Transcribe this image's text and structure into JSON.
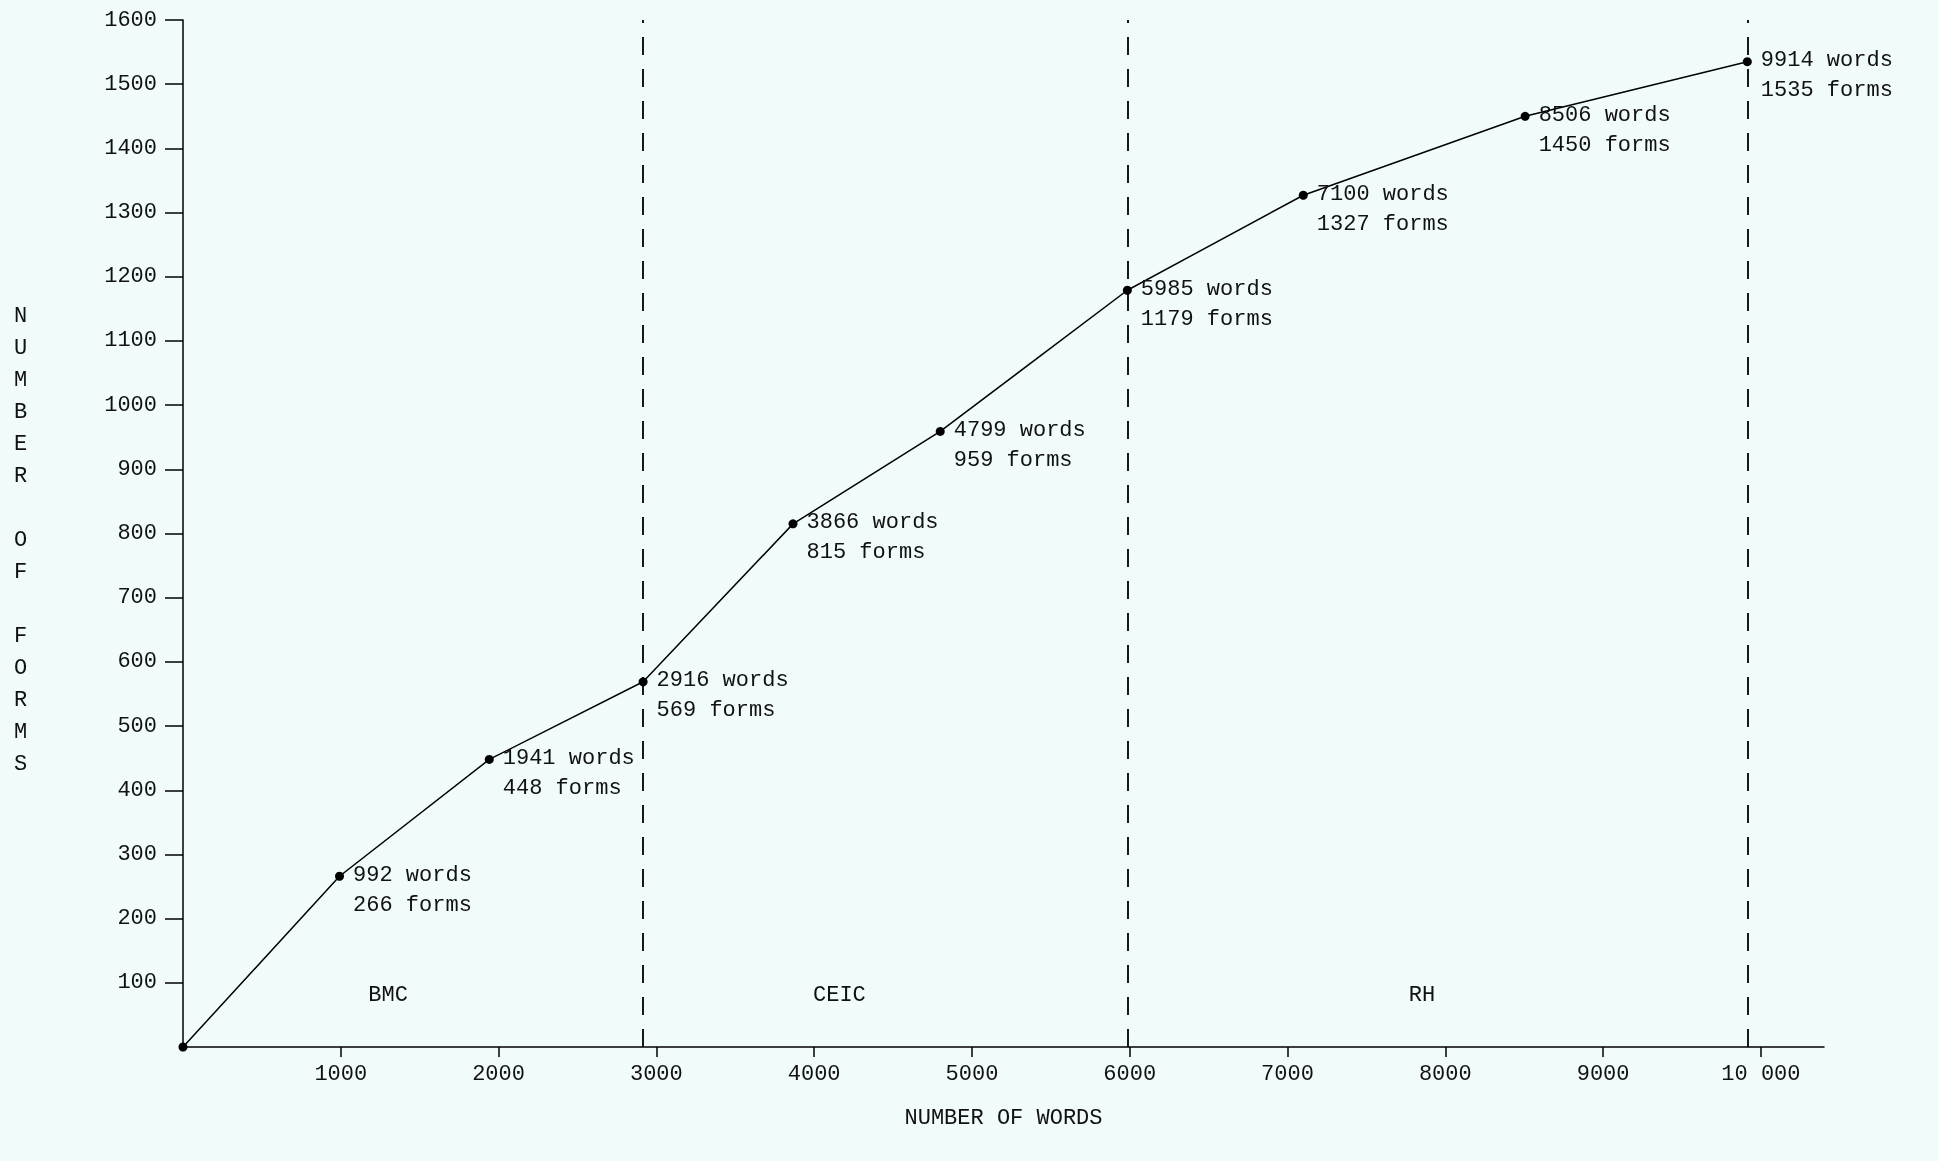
{
  "chart_data": {
    "type": "line",
    "xlabel": "NUMBER OF WORDS",
    "ylabel": "NUMBER OF FORMS",
    "x": [
      0,
      992,
      1941,
      2916,
      3866,
      4799,
      5985,
      7100,
      8506,
      9914
    ],
    "series": [
      {
        "color": "#000000",
        "values": [
          0,
          266,
          448,
          569,
          815,
          959,
          1179,
          1327,
          1450,
          1535
        ],
        "value_labels": [
          null,
          "992 words\n266 forms",
          "1941 words\n448 forms",
          "2916 words\n569 forms",
          "3866 words\n815 forms",
          "4799 words\n959 forms",
          "5985 words\n1179 forms",
          "7100 words\n1327 forms",
          "8506 words\n1450 forms",
          "9914 words\n1535 forms"
        ]
      }
    ],
    "xlim": [
      0,
      10400
    ],
    "xticks": [
      1000,
      2000,
      3000,
      4000,
      5000,
      6000,
      7000,
      8000,
      9000,
      {
        "value": 10000,
        "label": "10 000"
      }
    ],
    "ylim": [
      0,
      1600
    ],
    "yticks": [
      100,
      200,
      300,
      400,
      500,
      600,
      700,
      800,
      900,
      1000,
      1100,
      1200,
      1300,
      1400,
      1500,
      1600
    ],
    "ref_lines": [
      {
        "axis": "x",
        "value": 2916,
        "line_style": "dashed",
        "color": "#000000"
      },
      {
        "axis": "x",
        "value": 5985,
        "line_style": "dashed",
        "color": "#000000"
      },
      {
        "axis": "x",
        "value": 9914,
        "line_style": "dashed",
        "color": "#000000"
      }
    ],
    "annotations": [
      "BMC",
      "CEIC",
      "RH"
    ],
    "grid": false,
    "marker": "circle",
    "line_style": "solid"
  }
}
